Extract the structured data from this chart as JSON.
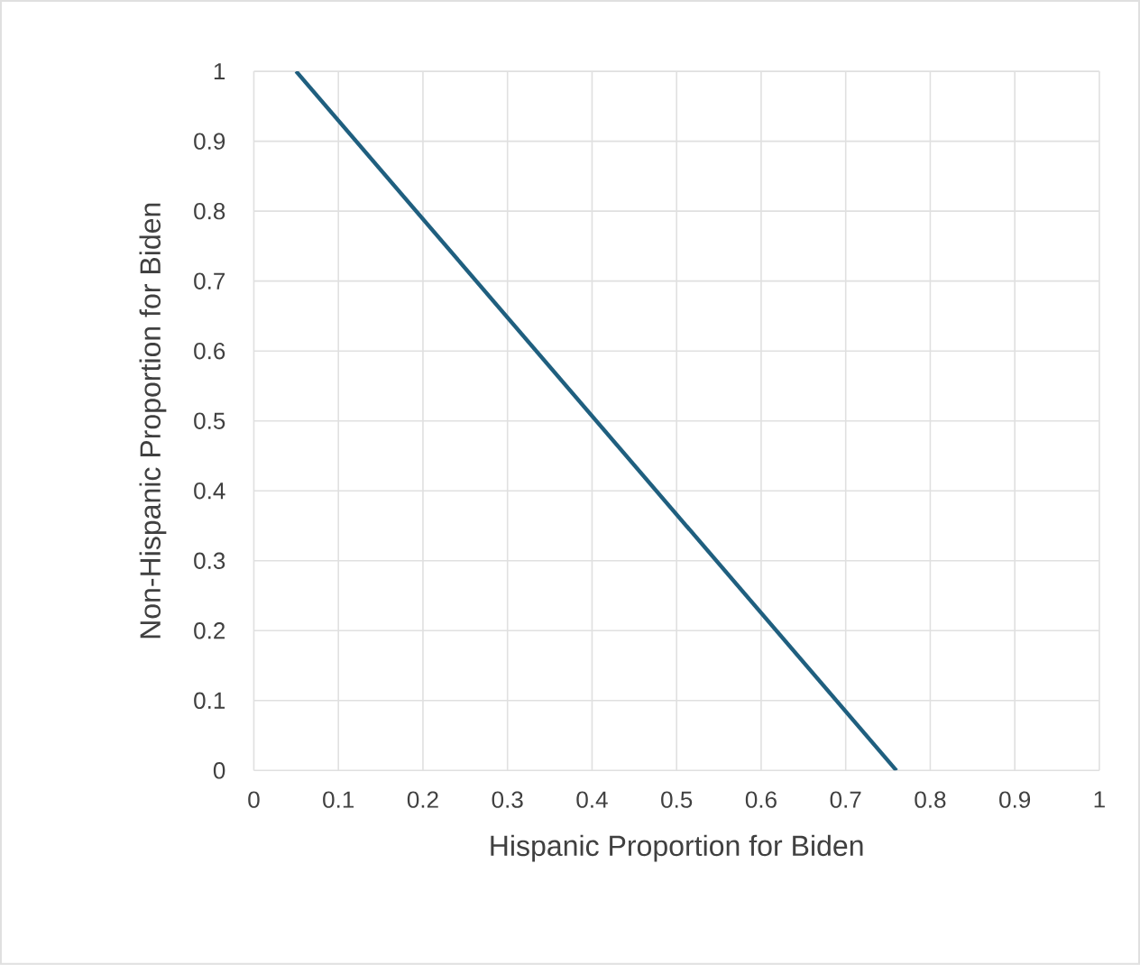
{
  "chart_data": {
    "type": "line",
    "xlabel": "Hispanic Proportion for Biden",
    "ylabel": "Non-Hispanic Proportion for Biden",
    "x": [
      0.05,
      0.76
    ],
    "series": [
      {
        "color": "#1f5f7f",
        "values": [
          1,
          0
        ]
      }
    ],
    "xlim": [
      0,
      1
    ],
    "ylim": [
      0,
      1
    ],
    "xticks": [
      0,
      0.1,
      0.2,
      0.3,
      0.4,
      0.5,
      0.6,
      0.7,
      0.8,
      0.9,
      1
    ],
    "yticks": [
      0,
      0.1,
      0.2,
      0.3,
      0.4,
      0.5,
      0.6,
      0.7,
      0.8,
      0.9,
      1
    ],
    "grid": true,
    "marker": "none",
    "line_style": "solid"
  }
}
